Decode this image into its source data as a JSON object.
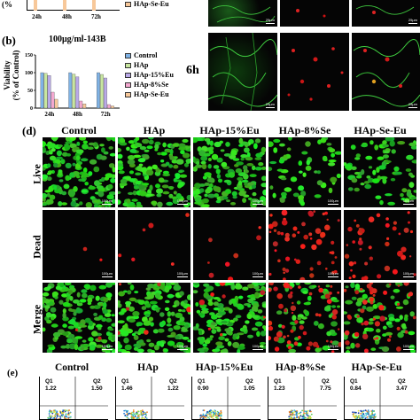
{
  "panel_a_top": {
    "legend_partial": "HAp-Se-Eu",
    "ticks": [
      "24h",
      "48h",
      "72h"
    ],
    "scale_labels": [
      "25μm",
      "25μm"
    ]
  },
  "panel_b": {
    "label": "(b)",
    "title": "100μg/ml-143B",
    "ylabel_line1": "Viability",
    "ylabel_line2": "(% of Control)",
    "legend": [
      {
        "name": "Control",
        "color": "#7fb2e5"
      },
      {
        "name": "HAp",
        "color": "#c8e6a0"
      },
      {
        "name": "HAp-15%Eu",
        "color": "#b9a9e8"
      },
      {
        "name": "HAp-8%Se",
        "color": "#f4a8d0"
      },
      {
        "name": "HAp-Se-Eu",
        "color": "#f7c89a"
      }
    ]
  },
  "chart_data": {
    "type": "bar",
    "title": "100μg/ml-143B",
    "xlabel": "",
    "ylabel": "Viability (% of Control)",
    "categories": [
      "24h",
      "48h",
      "72h"
    ],
    "yticks": [
      "0",
      "50",
      "100",
      "150"
    ],
    "ylim": [
      0,
      150
    ],
    "series": [
      {
        "name": "Control",
        "values": [
          100,
          100,
          100
        ]
      },
      {
        "name": "HAp",
        "values": [
          98,
          96,
          95
        ]
      },
      {
        "name": "HAp-15%Eu",
        "values": [
          92,
          88,
          85
        ]
      },
      {
        "name": "HAp-8%Se",
        "values": [
          45,
          20,
          10
        ]
      },
      {
        "name": "HAp-Se-Eu",
        "values": [
          25,
          12,
          6
        ]
      }
    ],
    "legend_position": "right"
  },
  "panel_c": {
    "time_label": "6h",
    "scale_labels": [
      "25μm",
      "25μm"
    ]
  },
  "panel_d": {
    "label": "(d)",
    "columns": [
      "Control",
      "HAp",
      "HAp-15%Eu",
      "HAp-8%Se",
      "HAp-Se-Eu"
    ],
    "rows": [
      "Live",
      "Dead",
      "Merge"
    ],
    "scale_label": "100μm"
  },
  "panel_e": {
    "label": "(e)",
    "columns": [
      "Control",
      "HAp",
      "HAp-15%Eu",
      "HAp-8%Se",
      "HAp-Se-Eu"
    ],
    "q1_label": "Q1",
    "q2_label": "Q2",
    "q1_values": [
      "1.22",
      "1.46",
      "0.90",
      "1.23",
      "0.84"
    ],
    "q2_values": [
      "1.50",
      "1.22",
      "1.05",
      "7.75",
      "3.47"
    ]
  }
}
